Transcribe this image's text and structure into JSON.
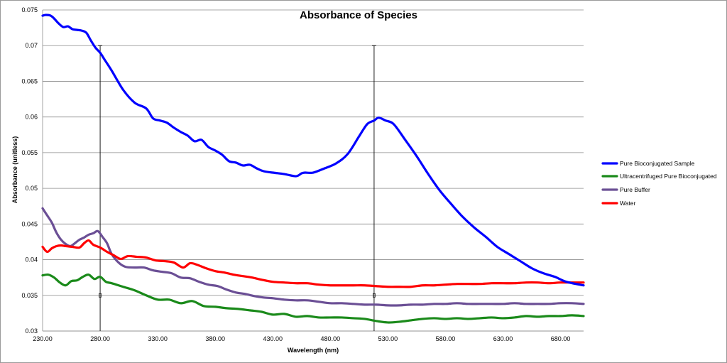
{
  "chart_data": {
    "type": "line",
    "title": "Absorbance of Species",
    "xlabel": "Wavelength (nm)",
    "ylabel": "Absorbance (unitless)",
    "xlim": [
      230,
      700
    ],
    "ylim": [
      0.03,
      0.075
    ],
    "x_ticks": [
      230,
      280,
      330,
      380,
      430,
      480,
      530,
      580,
      630,
      680
    ],
    "x_tick_labels": [
      "230.00",
      "280.00",
      "330.00",
      "380.00",
      "430.00",
      "480.00",
      "530.00",
      "580.00",
      "630.00",
      "680.00"
    ],
    "y_ticks": [
      0.03,
      0.035,
      0.04,
      0.045,
      0.05,
      0.055,
      0.06,
      0.065,
      0.07,
      0.075
    ],
    "y_tick_labels": [
      "0.03",
      "0.035",
      "0.04",
      "0.045",
      "0.05",
      "0.055",
      "0.06",
      "0.065",
      "0.07",
      "0.075"
    ],
    "grid": "horizontal",
    "legend_position": "right",
    "vertical_markers": [
      {
        "x": 280,
        "y_top": 0.07,
        "y_bottom": 0.03
      },
      {
        "x": 518,
        "y_top": 0.07,
        "y_bottom": 0.03
      }
    ],
    "series": [
      {
        "name": "Pure Bioconjugated Sample",
        "color": "#0000ff",
        "x": [
          230,
          233,
          237,
          240,
          244,
          248,
          252,
          256,
          260,
          264,
          268,
          272,
          276,
          280,
          284,
          290,
          300,
          310,
          320,
          326,
          332,
          338,
          344,
          350,
          356,
          362,
          368,
          374,
          380,
          386,
          392,
          398,
          404,
          410,
          416,
          422,
          430,
          440,
          450,
          455,
          458,
          465,
          475,
          485,
          495,
          505,
          512,
          518,
          522,
          528,
          535,
          545,
          555,
          565,
          575,
          585,
          595,
          605,
          615,
          625,
          635,
          645,
          655,
          665,
          675,
          685,
          700
        ],
        "y": [
          0.0742,
          0.0743,
          0.0742,
          0.0738,
          0.0731,
          0.0726,
          0.0727,
          0.0723,
          0.0722,
          0.0721,
          0.0718,
          0.0707,
          0.0697,
          0.069,
          0.068,
          0.0665,
          0.0638,
          0.062,
          0.0612,
          0.0598,
          0.0595,
          0.0592,
          0.0585,
          0.0579,
          0.0574,
          0.0566,
          0.0568,
          0.0558,
          0.0553,
          0.0547,
          0.0538,
          0.0536,
          0.0532,
          0.0533,
          0.0528,
          0.0524,
          0.0522,
          0.052,
          0.0517,
          0.0521,
          0.0522,
          0.0522,
          0.0528,
          0.0535,
          0.0548,
          0.0573,
          0.059,
          0.0595,
          0.0599,
          0.0595,
          0.059,
          0.0568,
          0.0545,
          0.052,
          0.0497,
          0.0478,
          0.046,
          0.0445,
          0.0432,
          0.0418,
          0.0408,
          0.0398,
          0.0388,
          0.0381,
          0.0376,
          0.0369,
          0.0364
        ]
      },
      {
        "name": "Ultracentrifuged Pure Bioconjugated",
        "color": "#1a8a1a",
        "x": [
          230,
          235,
          240,
          245,
          250,
          255,
          260,
          265,
          270,
          275,
          280,
          285,
          290,
          300,
          310,
          320,
          330,
          340,
          350,
          360,
          370,
          380,
          390,
          400,
          410,
          420,
          430,
          440,
          450,
          460,
          470,
          480,
          490,
          500,
          510,
          520,
          530,
          540,
          550,
          560,
          570,
          580,
          590,
          600,
          610,
          620,
          630,
          640,
          650,
          660,
          670,
          680,
          690,
          700
        ],
        "y": [
          0.0378,
          0.0379,
          0.0375,
          0.0368,
          0.0364,
          0.037,
          0.0371,
          0.0376,
          0.0379,
          0.0373,
          0.0376,
          0.0369,
          0.0367,
          0.0362,
          0.0357,
          0.035,
          0.0344,
          0.0344,
          0.0339,
          0.0342,
          0.0335,
          0.0334,
          0.0332,
          0.0331,
          0.0329,
          0.0327,
          0.0323,
          0.0324,
          0.032,
          0.0321,
          0.0319,
          0.0319,
          0.0319,
          0.0318,
          0.0317,
          0.0314,
          0.0312,
          0.0313,
          0.0315,
          0.0317,
          0.0318,
          0.0317,
          0.0318,
          0.0317,
          0.0318,
          0.0319,
          0.0318,
          0.0319,
          0.0321,
          0.032,
          0.0321,
          0.0321,
          0.0322,
          0.0321
        ]
      },
      {
        "name": "Pure Buffer",
        "color": "#6b4f95",
        "x": [
          230,
          234,
          238,
          242,
          246,
          250,
          254,
          258,
          262,
          266,
          270,
          274,
          278,
          282,
          286,
          290,
          296,
          302,
          310,
          318,
          326,
          334,
          342,
          350,
          358,
          366,
          374,
          382,
          390,
          398,
          406,
          414,
          422,
          430,
          440,
          450,
          460,
          470,
          480,
          490,
          500,
          510,
          520,
          530,
          540,
          550,
          560,
          570,
          580,
          590,
          600,
          610,
          620,
          630,
          640,
          650,
          660,
          670,
          680,
          690,
          700
        ],
        "y": [
          0.0472,
          0.0462,
          0.0452,
          0.0438,
          0.0428,
          0.0422,
          0.0419,
          0.0423,
          0.0428,
          0.0431,
          0.0435,
          0.0437,
          0.044,
          0.0432,
          0.0423,
          0.0408,
          0.0396,
          0.039,
          0.0389,
          0.0389,
          0.0385,
          0.0383,
          0.0381,
          0.0375,
          0.0374,
          0.0369,
          0.0365,
          0.0363,
          0.0358,
          0.0354,
          0.0352,
          0.0349,
          0.0347,
          0.0346,
          0.0344,
          0.0343,
          0.0343,
          0.0341,
          0.0339,
          0.0339,
          0.0338,
          0.0337,
          0.0337,
          0.0336,
          0.0336,
          0.0337,
          0.0337,
          0.0338,
          0.0338,
          0.0339,
          0.0338,
          0.0338,
          0.0338,
          0.0338,
          0.0339,
          0.0338,
          0.0338,
          0.0338,
          0.0339,
          0.0339,
          0.0338
        ]
      },
      {
        "name": "Water",
        "color": "#ff0000",
        "x": [
          230,
          234,
          238,
          242,
          246,
          250,
          256,
          262,
          266,
          270,
          274,
          280,
          286,
          292,
          298,
          304,
          312,
          320,
          328,
          336,
          344,
          352,
          358,
          364,
          372,
          380,
          388,
          396,
          404,
          412,
          420,
          430,
          440,
          450,
          460,
          470,
          480,
          490,
          500,
          510,
          520,
          530,
          540,
          550,
          560,
          570,
          580,
          590,
          600,
          610,
          620,
          630,
          640,
          650,
          660,
          670,
          680,
          690,
          700
        ],
        "y": [
          0.0418,
          0.0411,
          0.0416,
          0.0419,
          0.042,
          0.0419,
          0.0418,
          0.0417,
          0.0423,
          0.0427,
          0.0421,
          0.0417,
          0.0411,
          0.0406,
          0.0401,
          0.0405,
          0.0404,
          0.0403,
          0.0399,
          0.0398,
          0.0396,
          0.0389,
          0.0395,
          0.0393,
          0.0388,
          0.0384,
          0.0382,
          0.0379,
          0.0377,
          0.0375,
          0.0372,
          0.0369,
          0.0368,
          0.0367,
          0.0367,
          0.0365,
          0.0364,
          0.0364,
          0.0364,
          0.0364,
          0.0363,
          0.0362,
          0.0362,
          0.0362,
          0.0364,
          0.0364,
          0.0365,
          0.0366,
          0.0366,
          0.0366,
          0.0367,
          0.0367,
          0.0367,
          0.0368,
          0.0368,
          0.0367,
          0.0368,
          0.0368,
          0.0368
        ]
      }
    ]
  }
}
